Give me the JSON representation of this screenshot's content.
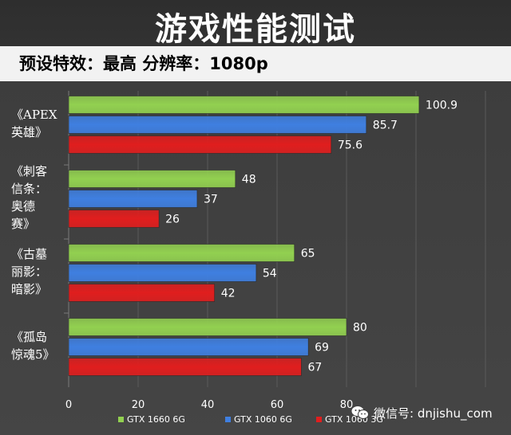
{
  "title": "游戏性能测试",
  "subtitle": "预设特效：最高   分辨率：1080p",
  "watermark": "微信号: dnjishu_com",
  "chart_data": {
    "type": "bar",
    "orientation": "horizontal",
    "categories": [
      "《APEX 英雄》",
      "《刺客 信条： 奥德 赛》",
      "《古墓 丽影： 暗影》",
      "《孤岛 惊魂5》"
    ],
    "category_lines": [
      [
        "《APEX",
        "英雄》"
      ],
      [
        "《刺客",
        "信条：",
        "奥德",
        "赛》"
      ],
      [
        "《古墓",
        "丽影：",
        "暗影》"
      ],
      [
        "《孤岛",
        "惊魂5》"
      ]
    ],
    "series": [
      {
        "name": "GTX 1660 6G",
        "values": [
          100.9,
          48,
          65,
          80
        ],
        "color": "#92d050"
      },
      {
        "name": "GTX 1060 6G",
        "values": [
          85.7,
          37,
          54,
          69
        ],
        "color": "#3f7fe0"
      },
      {
        "name": "GTX 1060 3G",
        "values": [
          75.6,
          26,
          42,
          67
        ],
        "color": "#e01e1e"
      }
    ],
    "value_labels": [
      [
        "100.9",
        "48",
        "65",
        "80"
      ],
      [
        "85.7",
        "37",
        "54",
        "69"
      ],
      [
        "75.6",
        "26",
        "42",
        "67"
      ]
    ],
    "xlim": [
      0,
      120
    ],
    "x_ticks": [
      "0",
      "20",
      "40",
      "60",
      "80",
      "",
      ""
    ],
    "x_tick_values": [
      0,
      20,
      40,
      60,
      80,
      100,
      120
    ],
    "grid": true,
    "legend_position": "bottom"
  }
}
